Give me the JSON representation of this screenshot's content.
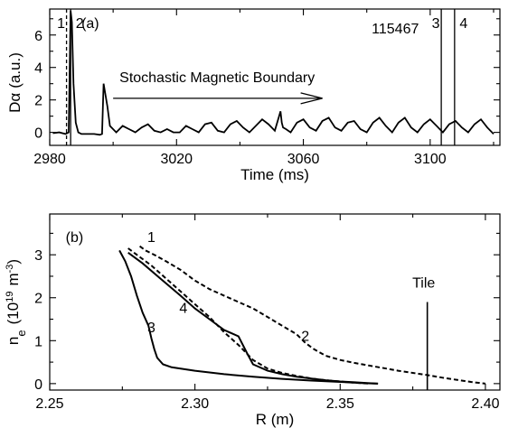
{
  "figure": {
    "shot_number": "115467"
  },
  "chart_data": [
    {
      "type": "line",
      "panel_label": "(a)",
      "xlabel": "Time (ms)",
      "ylabel_main": "D",
      "ylabel_sub": "α",
      "ylabel_unit": "(a.u.)",
      "xlim": [
        2980,
        3122
      ],
      "ylim": [
        -0.8,
        7.6
      ],
      "xticks": [
        2980,
        3020,
        3060,
        3100
      ],
      "xtick_labels": [
        "2980",
        "3020",
        "3060",
        "3100"
      ],
      "yticks": [
        0,
        2,
        4,
        6
      ],
      "ytick_labels": [
        "0",
        "2",
        "4",
        "6"
      ],
      "annotation": {
        "text": "Stochastic Magnetic Boundary",
        "arrow_from": [
          3000,
          2.1
        ],
        "arrow_to": [
          3028,
          2.1
        ],
        "arrow_head": [
          3066,
          2.1
        ]
      },
      "time_markers": [
        {
          "label": "1",
          "x": 2985.3,
          "style": "dashed"
        },
        {
          "label": "2",
          "x": 2986.6,
          "style": "solid"
        },
        {
          "label": "3",
          "x": 3103.5,
          "style": "solid"
        },
        {
          "label": "4",
          "x": 3107.7,
          "style": "solid"
        }
      ],
      "series": [
        {
          "x": [
            2981,
            2983,
            2985,
            2986,
            2986.6,
            2987.0,
            2987.5,
            2988.2,
            2989,
            2990,
            2992,
            2994,
            2995.8,
            2996.5,
            2997.0,
            2997.5,
            2998.2,
            2999.0,
            3001,
            3003,
            3005,
            3007,
            3009,
            3011,
            3013,
            3015,
            3017,
            3019,
            3021,
            3023,
            3025,
            3027,
            3029,
            3031,
            3033,
            3035,
            3037,
            3039,
            3041,
            3043,
            3045,
            3047,
            3049,
            3051,
            3052.8,
            3053.2,
            3053.6,
            3054.5,
            3056,
            3058,
            3060,
            3062,
            3064,
            3066,
            3068,
            3070,
            3072,
            3074,
            3076,
            3078,
            3080,
            3082,
            3084,
            3086,
            3088,
            3090,
            3092,
            3094,
            3096,
            3098,
            3100,
            3102,
            3104,
            3106,
            3108,
            3110,
            3112,
            3114,
            3116,
            3118,
            3120
          ],
          "y": [
            -0.05,
            0.0,
            -0.1,
            0.0,
            7.5,
            6.8,
            3.0,
            0.6,
            0.0,
            -0.1,
            -0.1,
            -0.1,
            -0.15,
            -0.1,
            3.0,
            2.4,
            1.6,
            0.4,
            0.0,
            0.4,
            0.2,
            0.0,
            0.3,
            0.5,
            0.1,
            0.0,
            0.2,
            0.0,
            0.0,
            0.4,
            0.2,
            0.0,
            0.5,
            0.6,
            0.1,
            0.0,
            0.5,
            0.7,
            0.3,
            0.0,
            0.4,
            0.8,
            0.5,
            0.1,
            1.3,
            0.6,
            0.3,
            0.2,
            0.0,
            0.6,
            0.8,
            0.3,
            0.1,
            0.7,
            0.9,
            0.3,
            0.1,
            0.6,
            0.7,
            0.2,
            0.0,
            0.6,
            0.9,
            0.4,
            0.0,
            0.6,
            0.9,
            0.3,
            0.0,
            0.5,
            0.8,
            0.4,
            0.0,
            0.5,
            0.7,
            0.3,
            0.0,
            0.5,
            0.8,
            0.3,
            -0.1
          ]
        }
      ]
    },
    {
      "type": "line",
      "panel_label": "(b)",
      "xlabel": "R (m)",
      "ylabel_main": "n",
      "ylabel_sub": "e",
      "ylabel_unit": "(10",
      "ylabel_exp1": "19",
      "ylabel_unit2": "m",
      "ylabel_exp2": "-3",
      "ylabel_close": ")",
      "xlim": [
        2.25,
        2.405
      ],
      "ylim": [
        -0.15,
        3.95
      ],
      "xticks": [
        2.25,
        2.3,
        2.35,
        2.4
      ],
      "xtick_labels": [
        "2.25",
        "2.30",
        "2.35",
        "2.40"
      ],
      "yticks": [
        0,
        1,
        2,
        3
      ],
      "ytick_labels": [
        "0",
        "1",
        "2",
        "3"
      ],
      "tile": {
        "label": "Tile",
        "x": 2.38,
        "y_top": 1.9
      },
      "series": [
        {
          "label": "1",
          "style": "dashed",
          "label_pos": [
            2.285,
            3.3
          ],
          "x": [
            2.281,
            2.283,
            2.286,
            2.29,
            2.295,
            2.3,
            2.305,
            2.31,
            2.315,
            2.32,
            2.325,
            2.33,
            2.335,
            2.338,
            2.341,
            2.345,
            2.35,
            2.355,
            2.36,
            2.365,
            2.37,
            2.375,
            2.38,
            2.385,
            2.39,
            2.395,
            2.4
          ],
          "y": [
            3.2,
            3.1,
            3.0,
            2.85,
            2.65,
            2.4,
            2.2,
            2.05,
            1.9,
            1.75,
            1.55,
            1.35,
            1.15,
            0.95,
            0.8,
            0.65,
            0.55,
            0.48,
            0.42,
            0.36,
            0.3,
            0.25,
            0.2,
            0.14,
            0.09,
            0.04,
            0.0
          ]
        },
        {
          "label": "2",
          "style": "dashed",
          "label_pos": [
            2.338,
            1.0
          ],
          "x": [
            2.277,
            2.28,
            2.285,
            2.29,
            2.295,
            2.3,
            2.305,
            2.31,
            2.315,
            2.32,
            2.325,
            2.33,
            2.335,
            2.34,
            2.345,
            2.35,
            2.355,
            2.36
          ],
          "y": [
            3.15,
            3.0,
            2.75,
            2.45,
            2.15,
            1.85,
            1.55,
            1.2,
            0.9,
            0.55,
            0.35,
            0.25,
            0.18,
            0.12,
            0.08,
            0.05,
            0.02,
            0.0
          ]
        },
        {
          "label": "3",
          "style": "solid",
          "label_pos": [
            2.285,
            1.2
          ],
          "x": [
            2.274,
            2.276,
            2.278,
            2.28,
            2.282,
            2.284,
            2.285,
            2.286,
            2.287,
            2.289,
            2.292,
            2.3,
            2.31,
            2.32,
            2.33,
            2.34,
            2.35,
            2.358,
            2.363
          ],
          "y": [
            3.1,
            2.85,
            2.5,
            2.05,
            1.65,
            1.35,
            1.05,
            0.8,
            0.6,
            0.45,
            0.38,
            0.3,
            0.22,
            0.16,
            0.11,
            0.07,
            0.04,
            0.01,
            0.0
          ]
        },
        {
          "label": "4",
          "style": "solid",
          "label_pos": [
            2.296,
            1.65
          ],
          "x": [
            2.277,
            2.282,
            2.288,
            2.295,
            2.3,
            2.305,
            2.31,
            2.315,
            2.318,
            2.32,
            2.325,
            2.33,
            2.335,
            2.34,
            2.345,
            2.35,
            2.355,
            2.36,
            2.363
          ],
          "y": [
            3.05,
            2.8,
            2.45,
            2.05,
            1.75,
            1.5,
            1.25,
            1.1,
            0.7,
            0.45,
            0.3,
            0.22,
            0.16,
            0.12,
            0.08,
            0.05,
            0.03,
            0.01,
            0.0
          ]
        }
      ]
    }
  ]
}
